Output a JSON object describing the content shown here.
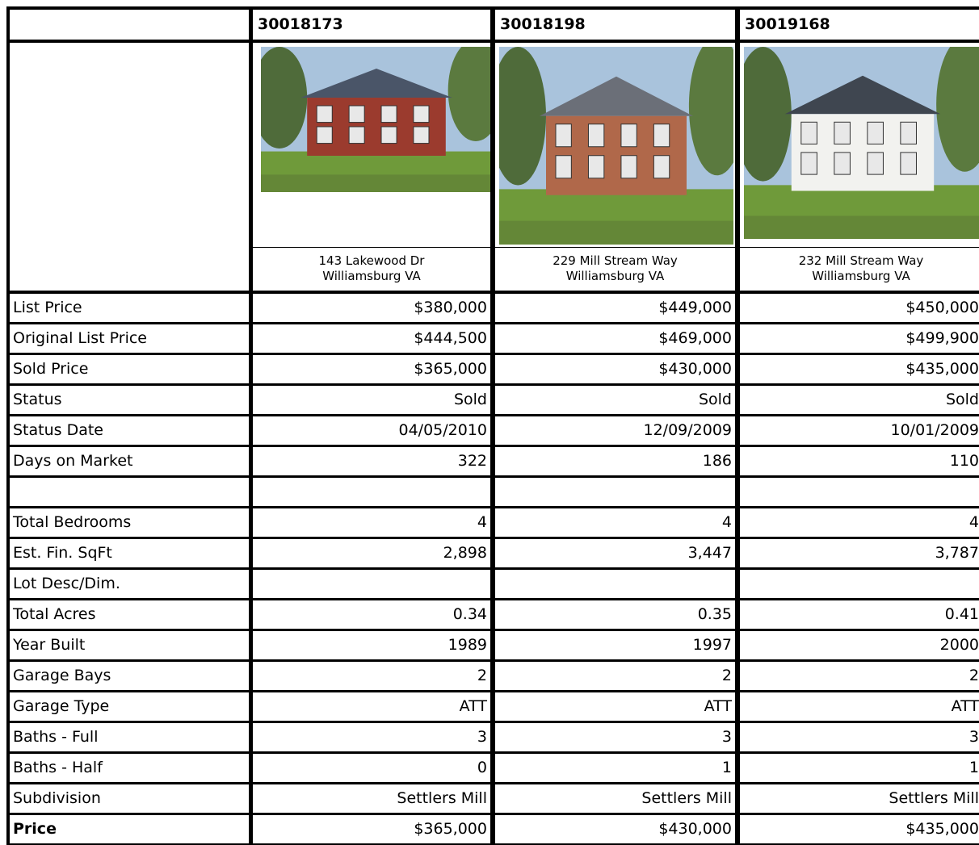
{
  "header": {
    "listings": [
      "30018173",
      "30018198",
      "30019168"
    ]
  },
  "properties": [
    {
      "address": "143 Lakewood Dr",
      "city": "Williamsburg VA"
    },
    {
      "address": "229 Mill Stream Way",
      "city": "Williamsburg VA"
    },
    {
      "address": "232 Mill Stream Way",
      "city": "Williamsburg VA"
    }
  ],
  "table": {
    "sections": [
      [
        {
          "label": "List Price",
          "values": [
            "$380,000",
            "$449,000",
            "$450,000"
          ]
        },
        {
          "label": "Original List Price",
          "values": [
            "$444,500",
            "$469,000",
            "$499,900"
          ]
        },
        {
          "label": "Sold Price",
          "values": [
            "$365,000",
            "$430,000",
            "$435,000"
          ]
        },
        {
          "label": "Status",
          "values": [
            "Sold",
            "Sold",
            "Sold"
          ]
        },
        {
          "label": "Status Date",
          "values": [
            "04/05/2010",
            "12/09/2009",
            "10/01/2009"
          ]
        },
        {
          "label": "Days on Market",
          "values": [
            "322",
            "186",
            "110"
          ]
        }
      ],
      [
        {
          "label": "Total Bedrooms",
          "values": [
            "4",
            "4",
            "4"
          ]
        },
        {
          "label": "Est. Fin. SqFt",
          "values": [
            "2,898",
            "3,447",
            "3,787"
          ]
        },
        {
          "label": "Lot Desc/Dim."
        },
        {
          "label": "Total Acres",
          "values": [
            "0.34",
            "0.35",
            "0.41"
          ]
        },
        {
          "label": "Year Built",
          "values": [
            "1989",
            "1997",
            "2000"
          ]
        },
        {
          "label": "Garage Bays",
          "values": [
            "2",
            "2",
            "2"
          ]
        },
        {
          "label": "Garage Type",
          "values": [
            "ATT",
            "ATT",
            "ATT"
          ]
        },
        {
          "label": "Baths - Full",
          "values": [
            "3",
            "3",
            "3"
          ]
        },
        {
          "label": "Baths - Half",
          "values": [
            "0",
            "1",
            "1"
          ]
        },
        {
          "label": "Subdivision",
          "values": [
            "Settlers Mill",
            "Settlers Mill",
            "Settlers Mill"
          ]
        },
        {
          "label": "Price",
          "values": [
            "$365,000",
            "$430,000",
            "$435,000"
          ]
        }
      ]
    ]
  }
}
